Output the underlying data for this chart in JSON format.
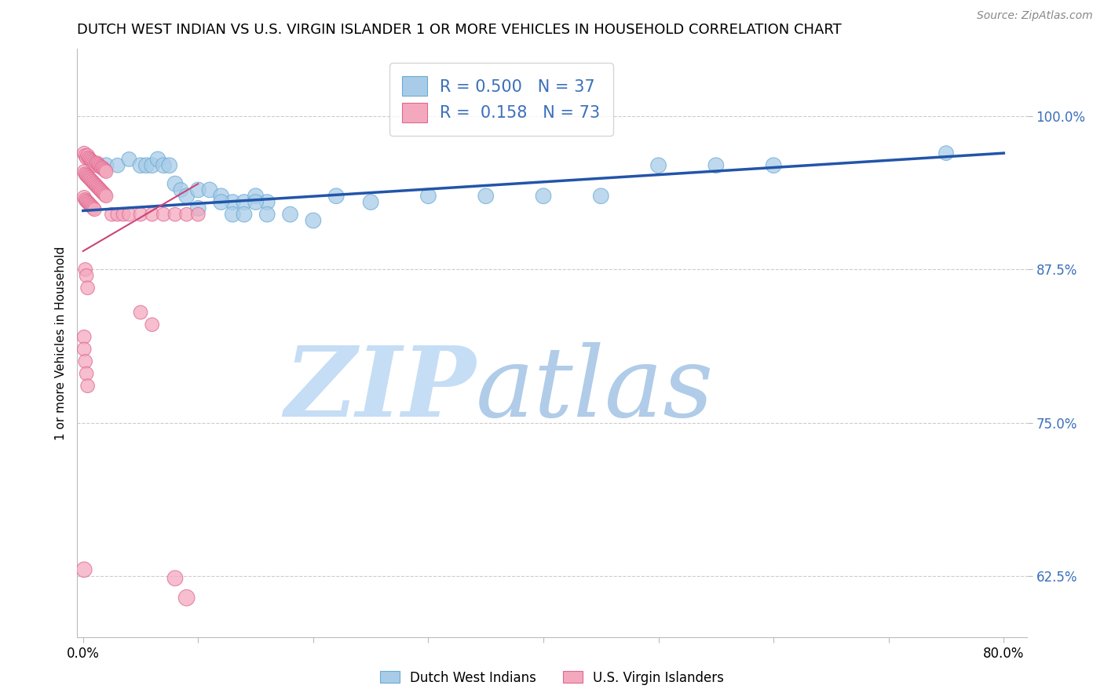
{
  "title": "DUTCH WEST INDIAN VS U.S. VIRGIN ISLANDER 1 OR MORE VEHICLES IN HOUSEHOLD CORRELATION CHART",
  "source": "Source: ZipAtlas.com",
  "ylabel": "1 or more Vehicles in Household",
  "y_ticks": [
    0.625,
    0.75,
    0.875,
    1.0
  ],
  "y_tick_labels": [
    "62.5%",
    "75.0%",
    "87.5%",
    "100.0%"
  ],
  "xlim": [
    -0.005,
    0.82
  ],
  "ylim": [
    0.575,
    1.055
  ],
  "blue_color": "#a8cce8",
  "pink_color": "#f4a8be",
  "blue_edge": "#6aaad4",
  "pink_edge": "#e06890",
  "trend_blue": "#2255aa",
  "trend_pink": "#cc4477",
  "legend_r_blue": "0.500",
  "legend_n_blue": "37",
  "legend_r_pink": "0.158",
  "legend_n_pink": "73",
  "legend_text_color": "#3a6fba",
  "watermark_zip": "ZIP",
  "watermark_atlas": "atlas",
  "watermark_color_zip": "#c5ddf5",
  "watermark_color_atlas": "#b0cce8",
  "background_color": "#ffffff",
  "grid_color": "#cccccc",
  "title_fontsize": 13,
  "label_fontsize": 11,
  "tick_fontsize": 12,
  "blue_scatter_x": [
    0.02,
    0.03,
    0.04,
    0.05,
    0.055,
    0.06,
    0.065,
    0.07,
    0.075,
    0.08,
    0.085,
    0.09,
    0.1,
    0.11,
    0.12,
    0.13,
    0.14,
    0.15,
    0.16,
    0.18,
    0.2,
    0.22,
    0.25,
    0.3,
    0.35,
    0.4,
    0.45,
    0.1,
    0.12,
    0.13,
    0.14,
    0.15,
    0.16,
    0.5,
    0.55,
    0.6,
    0.75
  ],
  "blue_scatter_y": [
    0.96,
    0.96,
    0.965,
    0.96,
    0.96,
    0.96,
    0.965,
    0.96,
    0.96,
    0.945,
    0.94,
    0.935,
    0.94,
    0.94,
    0.935,
    0.93,
    0.93,
    0.935,
    0.93,
    0.92,
    0.915,
    0.935,
    0.93,
    0.935,
    0.935,
    0.935,
    0.935,
    0.925,
    0.93,
    0.92,
    0.92,
    0.93,
    0.92,
    0.96,
    0.96,
    0.96,
    0.97
  ],
  "blue_scatter_s": [
    200,
    180,
    180,
    200,
    200,
    200,
    200,
    200,
    200,
    200,
    180,
    200,
    200,
    200,
    200,
    200,
    200,
    200,
    200,
    200,
    200,
    200,
    200,
    200,
    200,
    200,
    200,
    200,
    200,
    200,
    200,
    200,
    200,
    200,
    200,
    200,
    180
  ],
  "pink_scatter_x": [
    0.001,
    0.002,
    0.003,
    0.004,
    0.005,
    0.006,
    0.007,
    0.008,
    0.009,
    0.01,
    0.011,
    0.012,
    0.013,
    0.014,
    0.015,
    0.016,
    0.017,
    0.018,
    0.019,
    0.02,
    0.001,
    0.002,
    0.003,
    0.004,
    0.005,
    0.006,
    0.007,
    0.008,
    0.009,
    0.01,
    0.011,
    0.012,
    0.013,
    0.014,
    0.015,
    0.016,
    0.017,
    0.018,
    0.019,
    0.02,
    0.001,
    0.002,
    0.003,
    0.004,
    0.005,
    0.006,
    0.007,
    0.008,
    0.009,
    0.01,
    0.025,
    0.03,
    0.035,
    0.04,
    0.05,
    0.06,
    0.07,
    0.08,
    0.09,
    0.1,
    0.002,
    0.003,
    0.004,
    0.05,
    0.06,
    0.001,
    0.001,
    0.002,
    0.003,
    0.004,
    0.001,
    0.08,
    0.09
  ],
  "pink_scatter_y": [
    0.97,
    0.968,
    0.966,
    0.968,
    0.966,
    0.965,
    0.964,
    0.963,
    0.962,
    0.961,
    0.96,
    0.962,
    0.961,
    0.96,
    0.959,
    0.958,
    0.958,
    0.957,
    0.956,
    0.955,
    0.955,
    0.953,
    0.952,
    0.951,
    0.95,
    0.949,
    0.948,
    0.947,
    0.946,
    0.945,
    0.944,
    0.943,
    0.942,
    0.941,
    0.94,
    0.939,
    0.938,
    0.937,
    0.936,
    0.935,
    0.934,
    0.932,
    0.931,
    0.93,
    0.929,
    0.928,
    0.927,
    0.926,
    0.925,
    0.924,
    0.92,
    0.92,
    0.92,
    0.92,
    0.92,
    0.92,
    0.92,
    0.92,
    0.92,
    0.92,
    0.875,
    0.87,
    0.86,
    0.84,
    0.83,
    0.82,
    0.81,
    0.8,
    0.79,
    0.78,
    0.63,
    0.623,
    0.607
  ],
  "pink_scatter_s": [
    160,
    160,
    160,
    160,
    160,
    160,
    160,
    160,
    160,
    160,
    160,
    160,
    160,
    160,
    160,
    160,
    160,
    160,
    160,
    160,
    160,
    160,
    160,
    160,
    160,
    160,
    160,
    160,
    160,
    160,
    160,
    160,
    160,
    160,
    160,
    160,
    160,
    160,
    160,
    160,
    160,
    160,
    160,
    160,
    160,
    160,
    160,
    160,
    160,
    160,
    160,
    160,
    160,
    160,
    160,
    160,
    160,
    160,
    160,
    160,
    160,
    160,
    160,
    160,
    160,
    160,
    160,
    160,
    160,
    160,
    200,
    200,
    220
  ],
  "blue_trend_x": [
    0.0,
    0.8
  ],
  "blue_trend_y": [
    0.923,
    0.97
  ],
  "pink_trend_x": [
    0.0,
    0.1
  ],
  "pink_trend_y": [
    0.89,
    0.945
  ]
}
